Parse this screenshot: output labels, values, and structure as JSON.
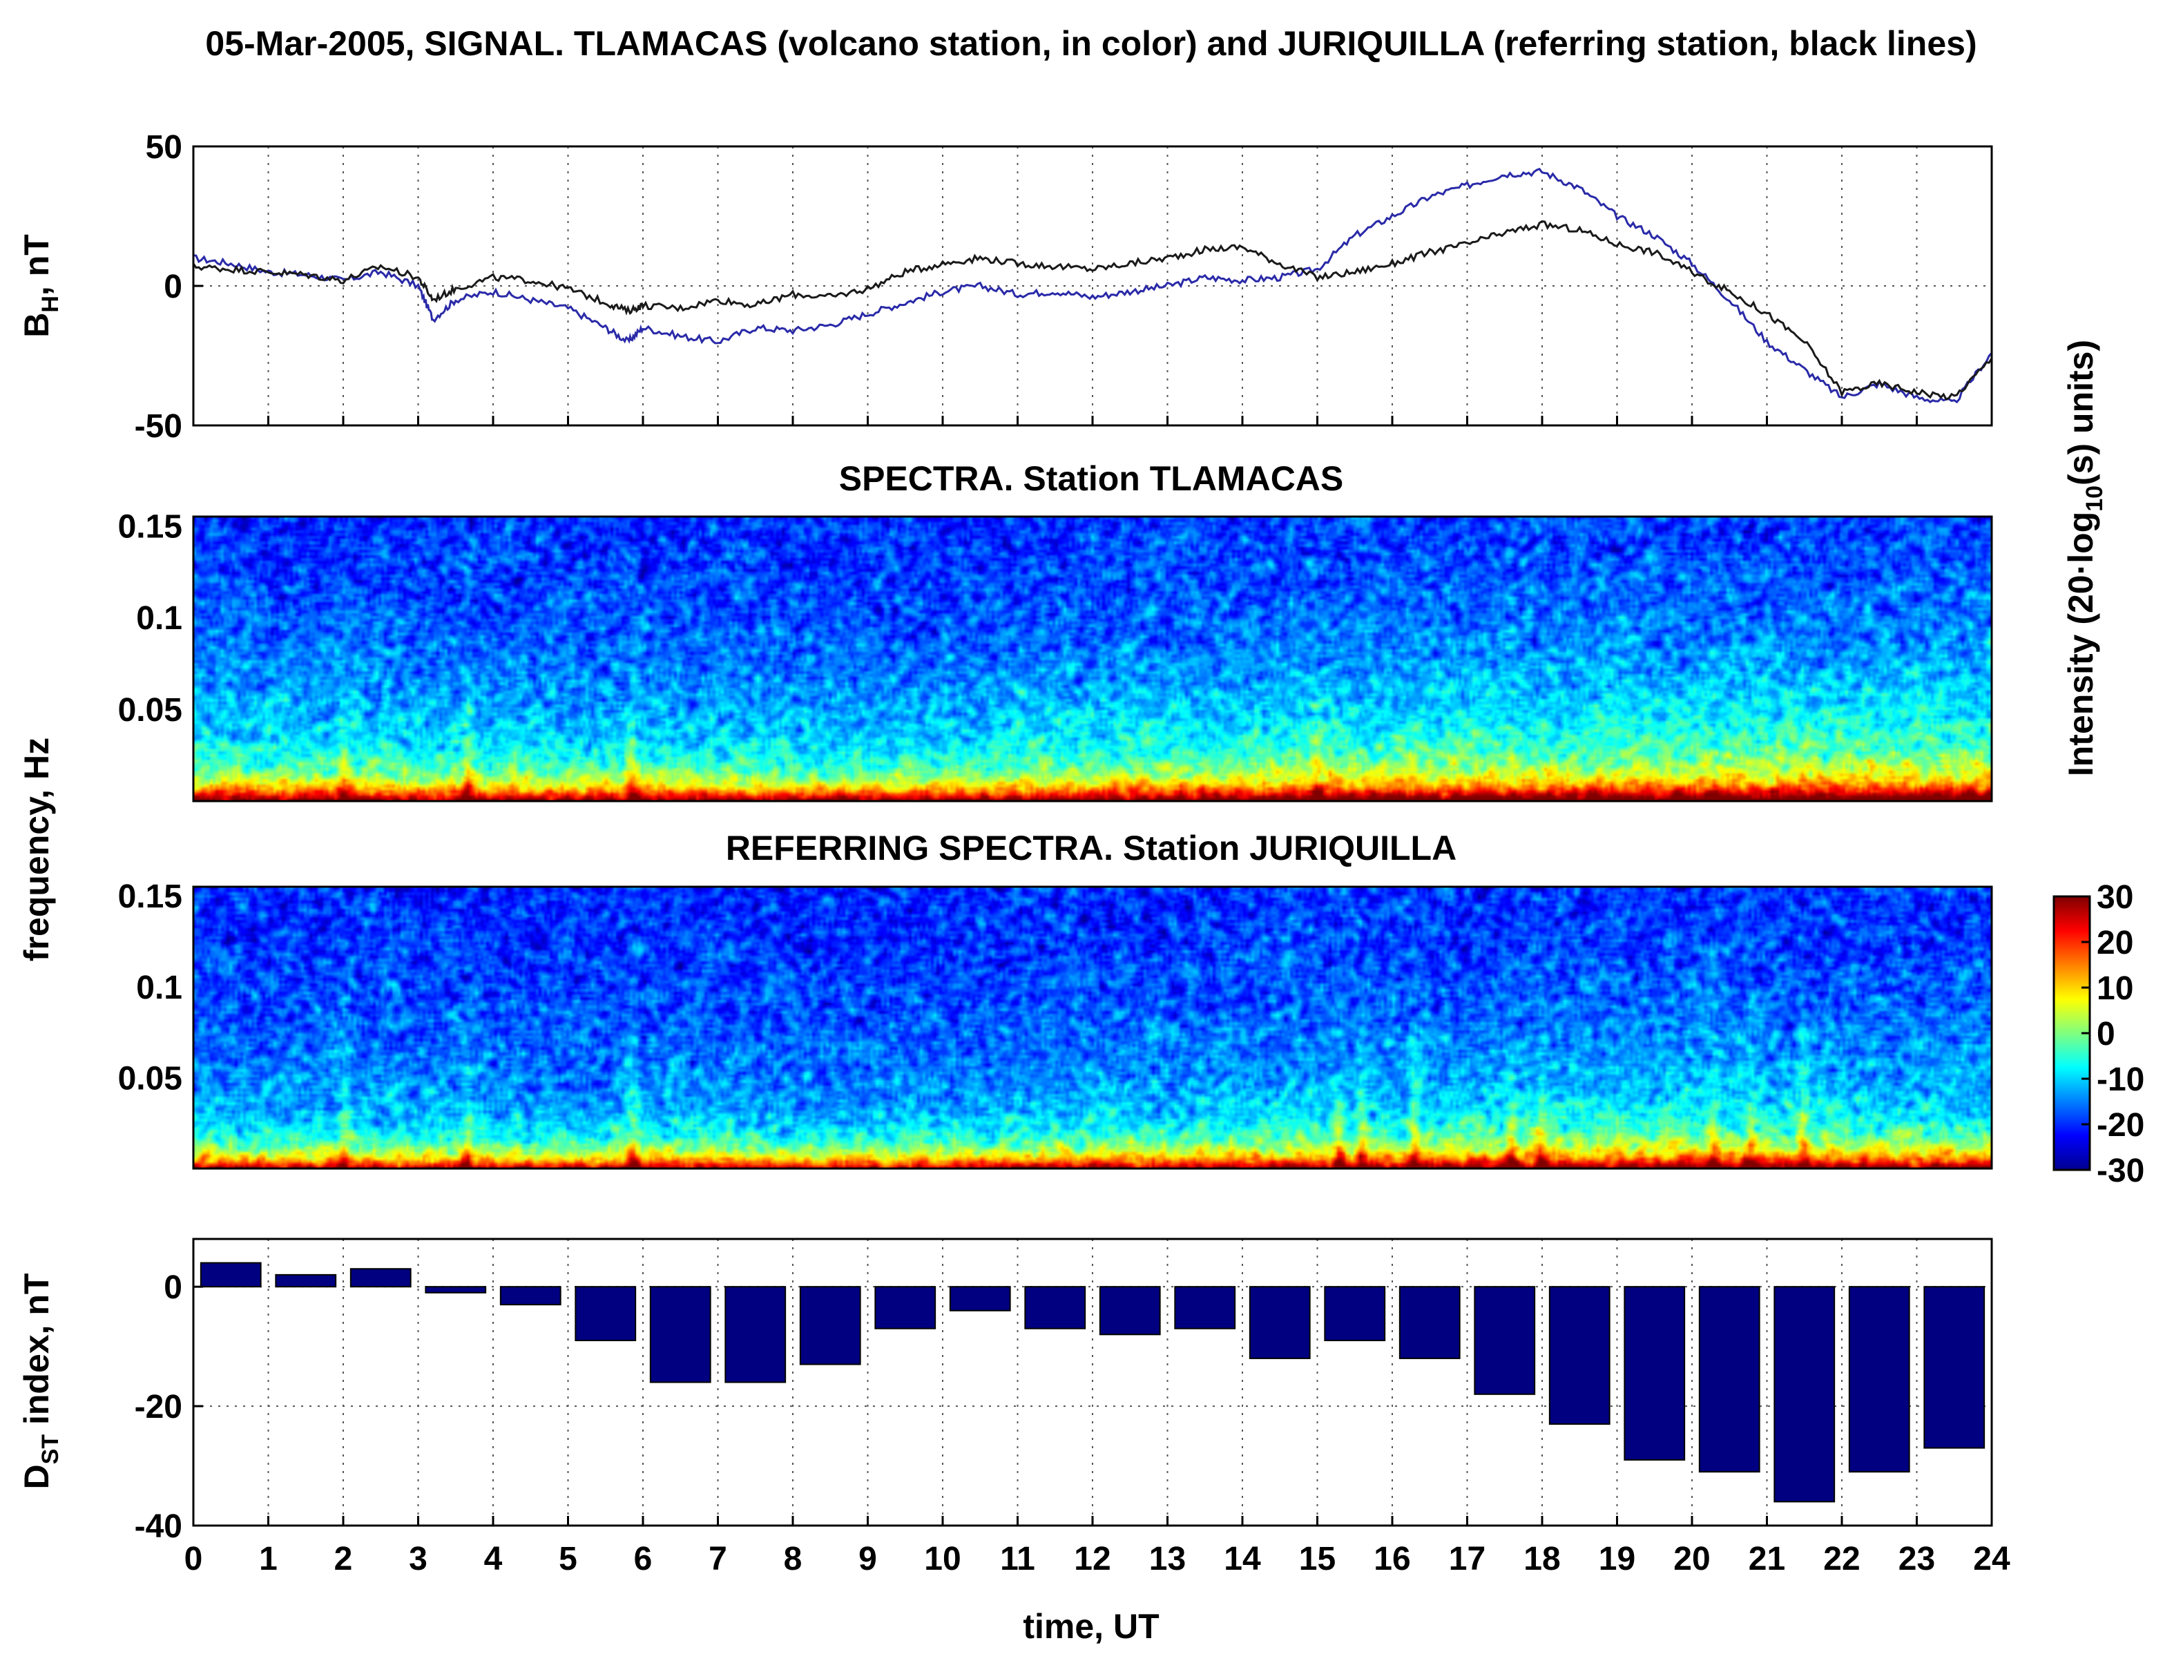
{
  "chart_data": [
    {
      "type": "line",
      "title": "05-Mar-2005, SIGNAL. TLAMACAS (volcano station, in color) and JURIQUILLA (referring station, black lines)",
      "xlabel": "time, UT",
      "ylabel_main": "B",
      "ylabel_sub": "H",
      "ylabel_rest": ", nT",
      "xlim": [
        0,
        24
      ],
      "ylim": [
        -50,
        50
      ],
      "yticks": [
        -50,
        0,
        50
      ],
      "grid": true,
      "series": [
        {
          "name": "TLAMACAS",
          "color": "#2a2aa8",
          "x": [
            0,
            0.5,
            1,
            1.5,
            2,
            2.5,
            3,
            3.2,
            3.5,
            4,
            4.5,
            5,
            5.5,
            5.8,
            6,
            6.5,
            7,
            7.5,
            8,
            8.5,
            9,
            9.5,
            10,
            10.5,
            11,
            11.5,
            12,
            12.5,
            13,
            13.5,
            14,
            14.5,
            15,
            15.5,
            16,
            16.5,
            17,
            17.5,
            18,
            18.5,
            19,
            19.5,
            20,
            20.5,
            21,
            21.5,
            22,
            22.5,
            23,
            23.5,
            24
          ],
          "values": [
            10,
            8,
            5,
            4,
            2,
            5,
            0,
            -12,
            -5,
            -2,
            -5,
            -8,
            -15,
            -20,
            -15,
            -18,
            -20,
            -15,
            -16,
            -14,
            -10,
            -6,
            -2,
            0,
            -3,
            -2,
            -4,
            -2,
            0,
            3,
            2,
            3,
            6,
            18,
            25,
            32,
            36,
            40,
            41,
            35,
            25,
            18,
            8,
            -5,
            -20,
            -30,
            -40,
            -35,
            -40,
            -42,
            -24
          ]
        },
        {
          "name": "JURIQUILLA",
          "color": "#1a1a1a",
          "x": [
            0,
            0.5,
            1,
            1.5,
            2,
            2.5,
            3,
            3.2,
            3.5,
            4,
            4.5,
            5,
            5.5,
            5.8,
            6,
            6.5,
            7,
            7.5,
            8,
            8.5,
            9,
            9.5,
            10,
            10.5,
            11,
            11.5,
            12,
            12.5,
            13,
            13.5,
            14,
            14.5,
            15,
            15.5,
            16,
            16.5,
            17,
            17.5,
            18,
            18.5,
            19,
            19.5,
            20,
            20.5,
            21,
            21.5,
            22,
            22.5,
            23,
            23.5,
            24
          ],
          "values": [
            7,
            6,
            5,
            4,
            2,
            7,
            3,
            -5,
            -1,
            3,
            2,
            -1,
            -6,
            -9,
            -7,
            -8,
            -5,
            -7,
            -3,
            -4,
            -1,
            5,
            8,
            10,
            8,
            7,
            6,
            8,
            10,
            13,
            14,
            8,
            3,
            5,
            8,
            12,
            15,
            19,
            22,
            20,
            15,
            12,
            5,
            -2,
            -10,
            -20,
            -38,
            -35,
            -38,
            -40,
            -26
          ]
        }
      ]
    },
    {
      "type": "heatmap",
      "title": "SPECTRA. Station TLAMACAS",
      "xlim": [
        0,
        24
      ],
      "ylim": [
        0,
        0.155
      ],
      "yticks": [
        "0.05",
        "0.1",
        "0.15"
      ],
      "ylabel": "frequency, Hz",
      "band_hours": [
        2.0,
        3.65,
        5.85,
        15.0
      ],
      "base_level_by_hour": [
        8,
        7,
        7,
        6,
        6,
        5,
        6,
        6,
        5,
        5,
        6,
        7,
        8,
        9,
        9,
        10,
        11,
        12,
        12,
        12,
        13,
        13,
        13,
        13,
        13
      ]
    },
    {
      "type": "heatmap",
      "title": "REFERRING SPECTRA. Station JURIQUILLA",
      "xlim": [
        0,
        24
      ],
      "ylim": [
        0,
        0.155
      ],
      "yticks": [
        "0.05",
        "0.1",
        "0.15"
      ],
      "band_hours": [
        2.0,
        3.65,
        5.85,
        15.3,
        15.6,
        16.3,
        17.6,
        18.0,
        20.3,
        20.8,
        21.5
      ],
      "base_level_by_hour": [
        3,
        2,
        3,
        2,
        2,
        1,
        3,
        3,
        1,
        1,
        2,
        3,
        4,
        4,
        5,
        6,
        6,
        6,
        7,
        7,
        8,
        7,
        7,
        6,
        6
      ]
    },
    {
      "type": "bar",
      "ylabel_main": "D",
      "ylabel_sub": "ST",
      "ylabel_rest": " index, nT",
      "xlabel": "time, UT",
      "categories": [
        "0",
        "1",
        "2",
        "3",
        "4",
        "5",
        "6",
        "7",
        "8",
        "9",
        "10",
        "11",
        "12",
        "13",
        "14",
        "15",
        "16",
        "17",
        "18",
        "19",
        "20",
        "21",
        "22",
        "23"
      ],
      "values": [
        4,
        2,
        3,
        -1,
        -3,
        -9,
        -16,
        -16,
        -13,
        -7,
        -4,
        -7,
        -8,
        -7,
        -12,
        -9,
        -12,
        -18,
        -23,
        -29,
        -31,
        -36,
        -31,
        -27
      ],
      "ylim": [
        -40,
        8
      ],
      "yticks": [
        -40,
        -20,
        0
      ],
      "xticks": [
        "0",
        "1",
        "2",
        "3",
        "4",
        "5",
        "6",
        "7",
        "8",
        "9",
        "10",
        "11",
        "12",
        "13",
        "14",
        "15",
        "16",
        "17",
        "18",
        "19",
        "20",
        "21",
        "22",
        "23",
        "24"
      ],
      "bar_color": "#000080"
    },
    {
      "type": "colorbar",
      "label_main": "Intensity (20·log",
      "label_sub": "10",
      "label_rest": "(s) units)",
      "range": [
        -30,
        30
      ],
      "ticks": [
        "30",
        "20",
        "10",
        "0",
        "-10",
        "-20",
        "-30"
      ]
    }
  ]
}
